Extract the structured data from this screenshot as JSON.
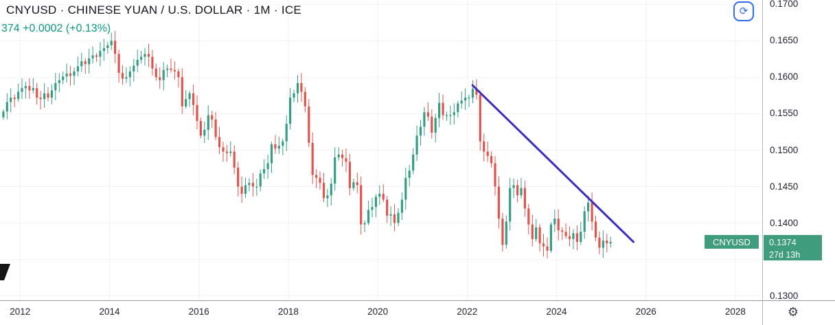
{
  "header": {
    "title": "CNYUSD · CHINESE YUAN / U.S. DOLLAR · 1M · ICE",
    "price_fragment": "374",
    "change_abs": "+0.0002",
    "change_pct": "(+0.13%)",
    "change_color": "#089981"
  },
  "toolbar": {
    "refresh_button": {
      "glyph": "⟳",
      "accent_color": "#2e68f0"
    }
  },
  "bottom_right": {
    "settings_glyph": "⚙"
  },
  "price_badge": {
    "symbol": "CNYUSD",
    "price": "0.1374",
    "countdown": "27d 13h",
    "color": "#3f9c7d"
  },
  "price_scale": {
    "labels": [
      {
        "text": "0.1700",
        "value": 0.17
      },
      {
        "text": "0.1650",
        "value": 0.165
      },
      {
        "text": "0.1600",
        "value": 0.16
      },
      {
        "text": "0.1550",
        "value": 0.155
      },
      {
        "text": "0.1500",
        "value": 0.15
      },
      {
        "text": "0.1450",
        "value": 0.145
      },
      {
        "text": "0.1400",
        "value": 0.14
      },
      {
        "text": "0.1300",
        "value": 0.13
      }
    ]
  },
  "time_scale": {
    "labels": [
      {
        "text": "2012",
        "value": 2012
      },
      {
        "text": "2014",
        "value": 2014
      },
      {
        "text": "2016",
        "value": 2016
      },
      {
        "text": "2018",
        "value": 2018
      },
      {
        "text": "2020",
        "value": 2020
      },
      {
        "text": "2022",
        "value": 2022
      },
      {
        "text": "2024",
        "value": 2024
      },
      {
        "text": "2026",
        "value": 2026
      },
      {
        "text": "2028",
        "value": 2028
      }
    ]
  },
  "chart_data": {
    "type": "candlestick",
    "title": "CNYUSD · CHINESE YUAN / U.S. DOLLAR · 1M · ICE",
    "symbol": "CNYUSD",
    "interval": "1M",
    "exchange": "ICE",
    "last_price": 0.1374,
    "start_time": 2011.625,
    "months_per_bar": 1,
    "closes": [
      0.1553,
      0.1566,
      0.1572,
      0.157,
      0.158,
      0.1585,
      0.1588,
      0.1582,
      0.1585,
      0.1572,
      0.157,
      0.1578,
      0.1572,
      0.1582,
      0.1592,
      0.1596,
      0.1601,
      0.1605,
      0.1602,
      0.1608,
      0.1615,
      0.1622,
      0.1618,
      0.1626,
      0.163,
      0.1628,
      0.1636,
      0.164,
      0.1644,
      0.165,
      0.1632,
      0.1606,
      0.1598,
      0.16,
      0.1608,
      0.1616,
      0.1624,
      0.1628,
      0.1632,
      0.1628,
      0.1612,
      0.16,
      0.1596,
      0.161,
      0.1612,
      0.161,
      0.1608,
      0.16,
      0.156,
      0.157,
      0.1578,
      0.1562,
      0.154,
      0.152,
      0.1528,
      0.1548,
      0.1542,
      0.1518,
      0.1504,
      0.1498,
      0.1496,
      0.1498,
      0.1476,
      0.145,
      0.144,
      0.1452,
      0.1455,
      0.145,
      0.145,
      0.1468,
      0.1474,
      0.1482,
      0.1508,
      0.1502,
      0.1506,
      0.1512,
      0.1536,
      0.1572,
      0.1578,
      0.1592,
      0.158,
      0.156,
      0.151,
      0.1466,
      0.1462,
      0.1455,
      0.1434,
      0.1438,
      0.1454,
      0.149,
      0.1494,
      0.1489,
      0.1484,
      0.1448,
      0.1456,
      0.1452,
      0.1398,
      0.14,
      0.1418,
      0.1422,
      0.1436,
      0.144,
      0.1432,
      0.141,
      0.1412,
      0.14,
      0.1414,
      0.1432,
      0.1462,
      0.1472,
      0.1494,
      0.152,
      0.1532,
      0.1552,
      0.1546,
      0.1524,
      0.1544,
      0.1565,
      0.1548,
      0.1548,
      0.1548,
      0.1552,
      0.1564,
      0.1568,
      0.1572,
      0.1572,
      0.1584,
      0.1576,
      0.1512,
      0.1498,
      0.1492,
      0.1482,
      0.145,
      0.1406,
      0.137,
      0.1402,
      0.1448,
      0.1452,
      0.1438,
      0.1448,
      0.142,
      0.1398,
      0.1378,
      0.1394,
      0.1372,
      0.1368,
      0.1362,
      0.1398,
      0.1406,
      0.139,
      0.1388,
      0.1382,
      0.1378,
      0.1386,
      0.1374,
      0.1388,
      0.1416,
      0.1428,
      0.1402,
      0.138,
      0.1366,
      0.1376,
      0.1372,
      0.1374
    ],
    "x_domain": [
      2011.55,
      2028.6
    ],
    "y_domain": [
      0.1294,
      0.1706
    ],
    "x_ticks": [
      2012,
      2014,
      2016,
      2018,
      2020,
      2022,
      2024,
      2026,
      2028
    ],
    "y_grid": [
      0.13,
      0.135,
      0.14,
      0.145,
      0.15,
      0.155,
      0.16,
      0.165,
      0.17
    ],
    "up_color": "#359d84",
    "down_color": "#e0544c",
    "grid_color": "#f0f2f5",
    "trendline": {
      "x1": 2022.12,
      "y1": 0.1589,
      "x2": 2025.72,
      "y2": 0.1374,
      "color": "#3b2dbb",
      "width": 3
    }
  }
}
